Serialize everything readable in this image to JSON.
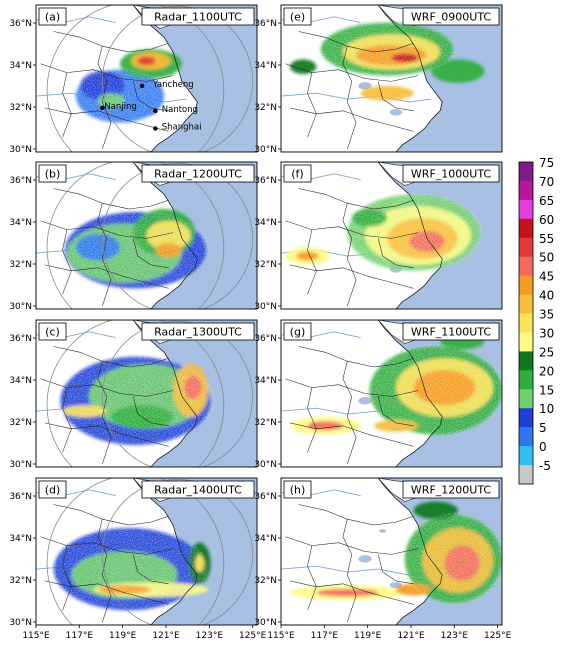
{
  "figure": {
    "panels": [
      {
        "letter": "(a)",
        "title": "Radar_1100UTC",
        "column": "radar",
        "row": 0,
        "cities": [
          {
            "name": "Yancheng"
          },
          {
            "name": "Nanjing"
          },
          {
            "name": "Nantong"
          },
          {
            "name": "Shanghai"
          }
        ]
      },
      {
        "letter": "(b)",
        "title": "Radar_1200UTC",
        "column": "radar",
        "row": 1,
        "cities": []
      },
      {
        "letter": "(c)",
        "title": "Radar_1300UTC",
        "column": "radar",
        "row": 2,
        "cities": []
      },
      {
        "letter": "(d)",
        "title": "Radar_1400UTC",
        "column": "radar",
        "row": 3,
        "cities": []
      },
      {
        "letter": "(e)",
        "title": "WRF_0900UTC",
        "column": "wrf",
        "row": 0,
        "cities": []
      },
      {
        "letter": "(f)",
        "title": "WRF_1000UTC",
        "column": "wrf",
        "row": 1,
        "cities": []
      },
      {
        "letter": "(g)",
        "title": "WRF_1100UTC",
        "column": "wrf",
        "row": 2,
        "cities": []
      },
      {
        "letter": "(h)",
        "title": "WRF_1200UTC",
        "column": "wrf",
        "row": 3,
        "cities": []
      }
    ],
    "lat_ticks": [
      "36°N",
      "34°N",
      "32°N",
      "30°N"
    ],
    "lon_ticks": [
      "115°E",
      "117°E",
      "119°E",
      "121°E",
      "123°E",
      "125°E"
    ],
    "colorbar": {
      "levels": [
        {
          "label": "75",
          "color": "#7d1c8a"
        },
        {
          "label": "70",
          "color": "#b5179b"
        },
        {
          "label": "65",
          "color": "#e040e0"
        },
        {
          "label": "60",
          "color": "#c4141a"
        },
        {
          "label": "55",
          "color": "#e3393a"
        },
        {
          "label": "50",
          "color": "#f26a5f"
        },
        {
          "label": "45",
          "color": "#f59a22"
        },
        {
          "label": "40",
          "color": "#f7bd3c"
        },
        {
          "label": "35",
          "color": "#fde35a"
        },
        {
          "label": "30",
          "color": "#fdfb86"
        },
        {
          "label": "25",
          "color": "#11781f"
        },
        {
          "label": "20",
          "color": "#2fae3c"
        },
        {
          "label": "15",
          "color": "#71d16b"
        },
        {
          "label": "10",
          "color": "#1f3fd6"
        },
        {
          "label": "5",
          "color": "#2f77f0"
        },
        {
          "label": "0",
          "color": "#33bff2"
        },
        {
          "label": "-5",
          "color": "#c8c8c8"
        }
      ]
    },
    "colors": {
      "sea": "#a7c0e3",
      "land": "#ffffff",
      "border": "#222222",
      "river": "#7fa7d6",
      "range_ring": "#8a8a8a"
    }
  }
}
